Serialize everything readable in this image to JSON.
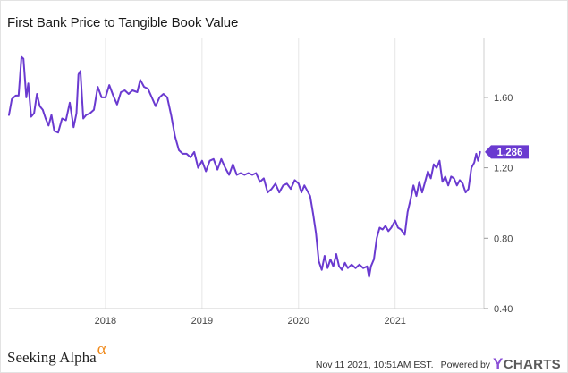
{
  "chart_data": {
    "type": "line",
    "title": "First Bank Price to Tangible Book Value",
    "xlabel": "",
    "ylabel": "",
    "x_ticks": [
      "2018",
      "2019",
      "2020",
      "2021"
    ],
    "y_ticks": [
      "0.40",
      "0.80",
      "1.20",
      "1.60"
    ],
    "xlim": [
      2017.0,
      2021.92
    ],
    "ylim": [
      0.4,
      1.94
    ],
    "grid": "vertical",
    "color": "#6a3ad0",
    "last_value_label": "1.286",
    "series": [
      {
        "values": [
          [
            2017.0,
            1.5
          ],
          [
            2017.03,
            1.59
          ],
          [
            2017.07,
            1.61
          ],
          [
            2017.1,
            1.61
          ],
          [
            2017.13,
            1.83
          ],
          [
            2017.15,
            1.82
          ],
          [
            2017.18,
            1.6
          ],
          [
            2017.2,
            1.68
          ],
          [
            2017.23,
            1.49
          ],
          [
            2017.26,
            1.51
          ],
          [
            2017.29,
            1.62
          ],
          [
            2017.32,
            1.55
          ],
          [
            2017.35,
            1.53
          ],
          [
            2017.38,
            1.48
          ],
          [
            2017.41,
            1.44
          ],
          [
            2017.44,
            1.5
          ],
          [
            2017.47,
            1.41
          ],
          [
            2017.51,
            1.4
          ],
          [
            2017.55,
            1.48
          ],
          [
            2017.59,
            1.47
          ],
          [
            2017.63,
            1.57
          ],
          [
            2017.67,
            1.43
          ],
          [
            2017.7,
            1.51
          ],
          [
            2017.72,
            1.73
          ],
          [
            2017.74,
            1.75
          ],
          [
            2017.77,
            1.48
          ],
          [
            2017.8,
            1.5
          ],
          [
            2017.84,
            1.51
          ],
          [
            2017.88,
            1.53
          ],
          [
            2017.92,
            1.66
          ],
          [
            2017.96,
            1.6
          ],
          [
            2018.0,
            1.6
          ],
          [
            2018.04,
            1.67
          ],
          [
            2018.08,
            1.61
          ],
          [
            2018.12,
            1.56
          ],
          [
            2018.16,
            1.63
          ],
          [
            2018.2,
            1.64
          ],
          [
            2018.24,
            1.62
          ],
          [
            2018.28,
            1.64
          ],
          [
            2018.33,
            1.63
          ],
          [
            2018.36,
            1.7
          ],
          [
            2018.4,
            1.66
          ],
          [
            2018.44,
            1.65
          ],
          [
            2018.48,
            1.6
          ],
          [
            2018.52,
            1.55
          ],
          [
            2018.56,
            1.6
          ],
          [
            2018.6,
            1.62
          ],
          [
            2018.64,
            1.6
          ],
          [
            2018.68,
            1.5
          ],
          [
            2018.72,
            1.38
          ],
          [
            2018.76,
            1.3
          ],
          [
            2018.8,
            1.28
          ],
          [
            2018.84,
            1.28
          ],
          [
            2018.88,
            1.26
          ],
          [
            2018.92,
            1.29
          ],
          [
            2018.96,
            1.2
          ],
          [
            2019.0,
            1.24
          ],
          [
            2019.04,
            1.18
          ],
          [
            2019.08,
            1.24
          ],
          [
            2019.12,
            1.25
          ],
          [
            2019.16,
            1.19
          ],
          [
            2019.2,
            1.25
          ],
          [
            2019.24,
            1.2
          ],
          [
            2019.28,
            1.16
          ],
          [
            2019.32,
            1.22
          ],
          [
            2019.36,
            1.16
          ],
          [
            2019.4,
            1.17
          ],
          [
            2019.44,
            1.16
          ],
          [
            2019.48,
            1.17
          ],
          [
            2019.52,
            1.16
          ],
          [
            2019.56,
            1.17
          ],
          [
            2019.6,
            1.12
          ],
          [
            2019.64,
            1.14
          ],
          [
            2019.68,
            1.06
          ],
          [
            2019.72,
            1.08
          ],
          [
            2019.76,
            1.11
          ],
          [
            2019.8,
            1.06
          ],
          [
            2019.84,
            1.1
          ],
          [
            2019.88,
            1.11
          ],
          [
            2019.92,
            1.08
          ],
          [
            2019.96,
            1.13
          ],
          [
            2020.0,
            1.11
          ],
          [
            2020.03,
            1.06
          ],
          [
            2020.06,
            1.1
          ],
          [
            2020.09,
            1.07
          ],
          [
            2020.12,
            1.04
          ],
          [
            2020.15,
            0.94
          ],
          [
            2020.18,
            0.83
          ],
          [
            2020.21,
            0.67
          ],
          [
            2020.24,
            0.62
          ],
          [
            2020.27,
            0.7
          ],
          [
            2020.3,
            0.63
          ],
          [
            2020.33,
            0.68
          ],
          [
            2020.36,
            0.64
          ],
          [
            2020.39,
            0.71
          ],
          [
            2020.42,
            0.64
          ],
          [
            2020.45,
            0.62
          ],
          [
            2020.48,
            0.66
          ],
          [
            2020.51,
            0.63
          ],
          [
            2020.55,
            0.65
          ],
          [
            2020.59,
            0.63
          ],
          [
            2020.63,
            0.65
          ],
          [
            2020.67,
            0.63
          ],
          [
            2020.71,
            0.64
          ],
          [
            2020.73,
            0.58
          ],
          [
            2020.75,
            0.64
          ],
          [
            2020.78,
            0.68
          ],
          [
            2020.81,
            0.8
          ],
          [
            2020.84,
            0.86
          ],
          [
            2020.87,
            0.85
          ],
          [
            2020.9,
            0.87
          ],
          [
            2020.93,
            0.84
          ],
          [
            2020.96,
            0.86
          ],
          [
            2021.0,
            0.9
          ],
          [
            2021.03,
            0.86
          ],
          [
            2021.06,
            0.85
          ],
          [
            2021.1,
            0.82
          ],
          [
            2021.13,
            0.95
          ],
          [
            2021.16,
            1.02
          ],
          [
            2021.19,
            1.1
          ],
          [
            2021.22,
            1.04
          ],
          [
            2021.25,
            1.12
          ],
          [
            2021.28,
            1.06
          ],
          [
            2021.31,
            1.12
          ],
          [
            2021.34,
            1.18
          ],
          [
            2021.37,
            1.14
          ],
          [
            2021.4,
            1.22
          ],
          [
            2021.43,
            1.2
          ],
          [
            2021.46,
            1.24
          ],
          [
            2021.49,
            1.12
          ],
          [
            2021.52,
            1.15
          ],
          [
            2021.55,
            1.1
          ],
          [
            2021.58,
            1.15
          ],
          [
            2021.61,
            1.14
          ],
          [
            2021.64,
            1.1
          ],
          [
            2021.67,
            1.13
          ],
          [
            2021.7,
            1.11
          ],
          [
            2021.73,
            1.06
          ],
          [
            2021.76,
            1.08
          ],
          [
            2021.79,
            1.2
          ],
          [
            2021.82,
            1.23
          ],
          [
            2021.84,
            1.28
          ],
          [
            2021.86,
            1.24
          ],
          [
            2021.88,
            1.29
          ]
        ]
      }
    ]
  },
  "footer": {
    "brand": "Seeking Alpha",
    "brand_symbol": "α",
    "timestamp": "Nov 11 2021, 10:51AM EST.",
    "powered_by": "Powered by",
    "ycharts_y": "Y",
    "ycharts_rest": "CHARTS"
  }
}
